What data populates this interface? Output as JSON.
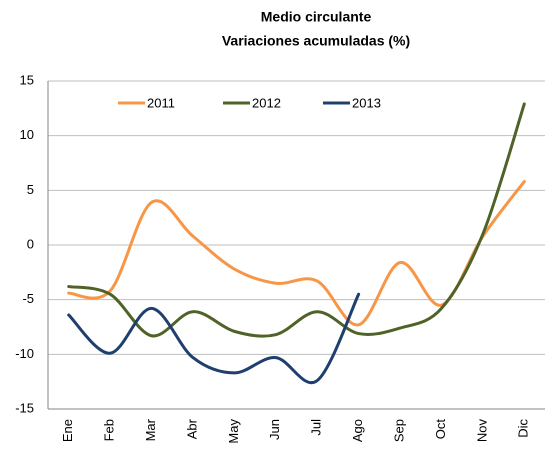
{
  "chart_data": {
    "type": "line",
    "title": "Medio circulante",
    "subtitle": "Variaciones acumuladas (%)",
    "categories": [
      "Ene",
      "Feb",
      "Mar",
      "Abr",
      "May",
      "Jun",
      "Jul",
      "Ago",
      "Sep",
      "Oct",
      "Nov",
      "Dic"
    ],
    "series": [
      {
        "name": "2011",
        "color": "#f79646",
        "values": [
          -4.4,
          -4.2,
          3.9,
          0.8,
          -2.2,
          -3.5,
          -3.3,
          -7.3,
          -1.6,
          -5.5,
          0.8,
          5.8
        ]
      },
      {
        "name": "2012",
        "color": "#4f6228",
        "values": [
          -3.8,
          -4.5,
          -8.3,
          -6.1,
          -7.9,
          -8.2,
          -6.1,
          -8.1,
          -7.6,
          -5.8,
          1.0,
          12.9
        ]
      },
      {
        "name": "2013",
        "color": "#1f3f6e",
        "values": [
          -6.4,
          -9.9,
          -5.8,
          -10.3,
          -11.7,
          -10.3,
          -12.4,
          -4.5,
          null,
          null,
          null,
          null
        ]
      }
    ],
    "ylim": [
      -15,
      15
    ],
    "yticks": [
      -15,
      -10,
      -5,
      0,
      5,
      10,
      15
    ],
    "grid": true,
    "smooth": true
  }
}
